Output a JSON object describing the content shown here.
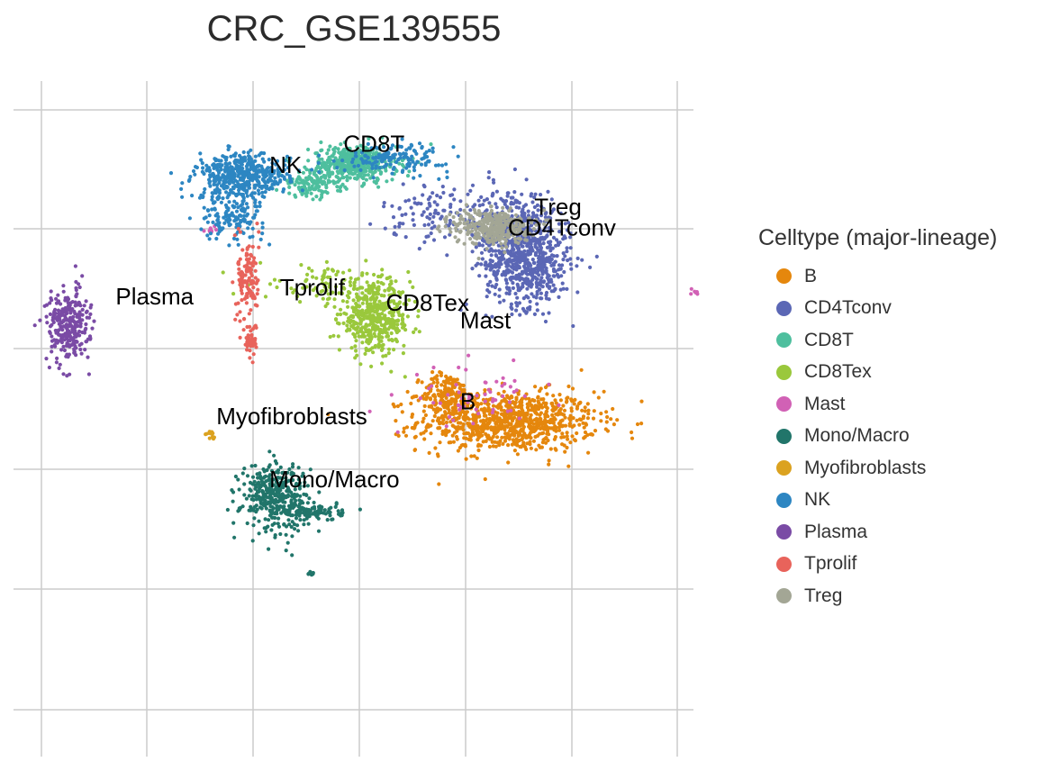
{
  "chart_data": {
    "type": "scatter",
    "title": "CRC_GSE139555",
    "grid": true,
    "legend_title": "Celltype (major-lineage)",
    "legend_position": "right",
    "categories": [
      {
        "name": "B",
        "color": "#e5870d"
      },
      {
        "name": "CD4Tconv",
        "color": "#5b67b5"
      },
      {
        "name": "CD8T",
        "color": "#4ebf9e"
      },
      {
        "name": "CD8Tex",
        "color": "#9ac83c"
      },
      {
        "name": "Mast",
        "color": "#d161b5"
      },
      {
        "name": "Mono/Macro",
        "color": "#21756a"
      },
      {
        "name": "Myofibroblasts",
        "color": "#dba220"
      },
      {
        "name": "NK",
        "color": "#2d86c2"
      },
      {
        "name": "Plasma",
        "color": "#7a4ba5"
      },
      {
        "name": "Tprolif",
        "color": "#e8635b"
      },
      {
        "name": "Treg",
        "color": "#a3a695"
      }
    ],
    "cluster_labels": [
      {
        "text": "NK",
        "x": 2.15,
        "y": 10.95
      },
      {
        "text": "CD8T",
        "x": 2.85,
        "y": 11.3
      },
      {
        "text": "Treg",
        "x": 4.65,
        "y": 10.25
      },
      {
        "text": "CD4Tconv",
        "x": 4.4,
        "y": 9.9
      },
      {
        "text": "Tprolif",
        "x": 2.25,
        "y": 8.9
      },
      {
        "text": "CD8Tex",
        "x": 3.25,
        "y": 8.65
      },
      {
        "text": "Plasma",
        "x": 0.7,
        "y": 8.75
      },
      {
        "text": "Mast",
        "x": 3.95,
        "y": 8.35
      },
      {
        "text": "B",
        "x": 3.95,
        "y": 7.0
      },
      {
        "text": "Myofibroblasts",
        "x": 1.65,
        "y": 6.75
      },
      {
        "text": "Mono/Macro",
        "x": 2.15,
        "y": 5.7
      }
    ],
    "clusters": [
      {
        "category": "B",
        "cx": 4.4,
        "cy": 6.8,
        "sx": 0.42,
        "sy": 0.25,
        "n": 900
      },
      {
        "category": "B",
        "cx": 3.83,
        "cy": 7.25,
        "sx": 0.12,
        "sy": 0.18,
        "n": 180
      },
      {
        "category": "CD4Tconv",
        "cx": 4.6,
        "cy": 9.4,
        "sx": 0.2,
        "sy": 0.35,
        "n": 500
      },
      {
        "category": "CD4Tconv",
        "cx": 4.45,
        "cy": 10.0,
        "sx": 0.2,
        "sy": 0.35,
        "n": 350
      },
      {
        "category": "CD4Tconv",
        "cx": 3.8,
        "cy": 10.3,
        "sx": 0.3,
        "sy": 0.25,
        "n": 120
      },
      {
        "category": "CD8T",
        "cx": 2.95,
        "cy": 11.1,
        "sx": 0.2,
        "sy": 0.15,
        "n": 450
      },
      {
        "category": "CD8T",
        "cx": 2.55,
        "cy": 10.75,
        "sx": 0.15,
        "sy": 0.1,
        "n": 120
      },
      {
        "category": "CD8Tex",
        "cx": 3.15,
        "cy": 8.5,
        "sx": 0.17,
        "sy": 0.28,
        "n": 450
      },
      {
        "category": "CD8Tex",
        "cx": 2.75,
        "cy": 9.1,
        "sx": 0.35,
        "sy": 0.15,
        "n": 100
      },
      {
        "category": "Mast",
        "cx": 4.1,
        "cy": 7.2,
        "sx": 0.3,
        "sy": 0.25,
        "n": 60
      },
      {
        "category": "Mast",
        "cx": 1.6,
        "cy": 10.0,
        "sx": 0.03,
        "sy": 0.03,
        "n": 10
      },
      {
        "category": "Mast",
        "cx": 6.15,
        "cy": 8.95,
        "sx": 0.02,
        "sy": 0.02,
        "n": 6
      },
      {
        "category": "Mono/Macro",
        "cx": 2.2,
        "cy": 5.55,
        "sx": 0.16,
        "sy": 0.28,
        "n": 350
      },
      {
        "category": "Mono/Macro",
        "cx": 2.55,
        "cy": 5.3,
        "sx": 0.15,
        "sy": 0.08,
        "n": 100
      },
      {
        "category": "Mono/Macro",
        "cx": 2.55,
        "cy": 4.25,
        "sx": 0.02,
        "sy": 0.02,
        "n": 8
      },
      {
        "category": "Myofibroblasts",
        "cx": 1.6,
        "cy": 6.55,
        "sx": 0.03,
        "sy": 0.05,
        "n": 12
      },
      {
        "category": "NK",
        "cx": 1.9,
        "cy": 10.9,
        "sx": 0.22,
        "sy": 0.18,
        "n": 450
      },
      {
        "category": "NK",
        "cx": 1.8,
        "cy": 10.25,
        "sx": 0.15,
        "sy": 0.2,
        "n": 150
      },
      {
        "category": "NK",
        "cx": 3.35,
        "cy": 11.2,
        "sx": 0.25,
        "sy": 0.12,
        "n": 150
      },
      {
        "category": "Plasma",
        "cx": 0.25,
        "cy": 8.4,
        "sx": 0.1,
        "sy": 0.3,
        "n": 280
      },
      {
        "category": "Tprolif",
        "cx": 1.95,
        "cy": 9.2,
        "sx": 0.05,
        "sy": 0.35,
        "n": 120
      },
      {
        "category": "Tprolif",
        "cx": 1.97,
        "cy": 8.15,
        "sx": 0.03,
        "sy": 0.15,
        "n": 40
      },
      {
        "category": "Treg",
        "cx": 4.25,
        "cy": 10.05,
        "sx": 0.18,
        "sy": 0.15,
        "n": 350
      }
    ]
  }
}
